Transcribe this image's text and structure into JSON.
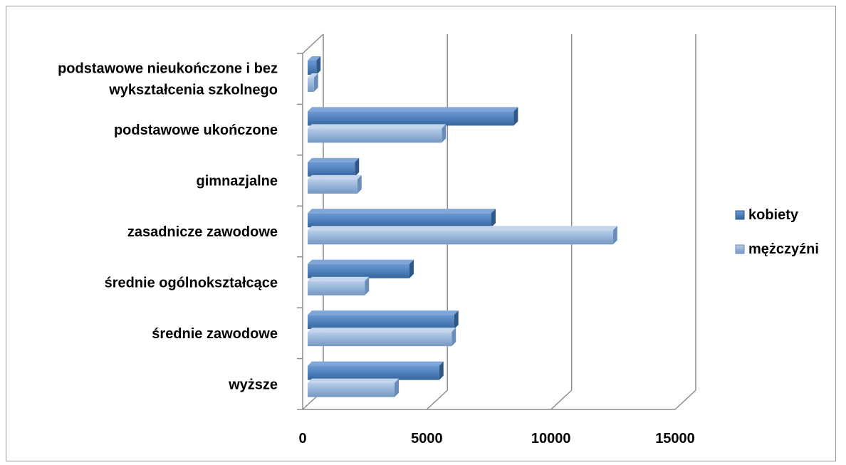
{
  "chart_data": {
    "type": "bar",
    "orientation": "horizontal",
    "style": "3d-clustered",
    "categories": [
      [
        "podstawowe nieukończone  i bez",
        "wykształcenia  szkolnego"
      ],
      [
        "podstawowe ukończone"
      ],
      [
        "gimnazjalne"
      ],
      [
        "zasadnicze  zawodowe"
      ],
      [
        "średnie ogólnokształcące"
      ],
      [
        "średnie zawodowe"
      ],
      [
        "wyższe"
      ]
    ],
    "series": [
      {
        "name": "kobiety",
        "color": "#4f81bd",
        "values": [
          350,
          8300,
          1900,
          7400,
          4100,
          5900,
          5300
        ]
      },
      {
        "name": "mężczyźni",
        "color": "#95b3d7",
        "values": [
          250,
          5400,
          2000,
          12300,
          2300,
          5800,
          3500
        ]
      }
    ],
    "xlim": [
      0,
      15000
    ],
    "ticks": [
      "0",
      "5000",
      "10000",
      "15000"
    ],
    "tick_values": [
      0,
      5000,
      10000,
      15000
    ],
    "grid": true,
    "legend_position": "right"
  }
}
